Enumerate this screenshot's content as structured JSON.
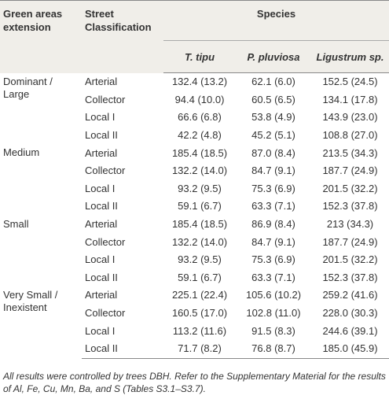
{
  "table": {
    "header": {
      "group": "Green areas extension",
      "street": "Street Classification",
      "species": "Species",
      "columns": [
        "T. tipu",
        "P. pluviosa",
        "Ligustrum sp."
      ]
    },
    "groups": [
      {
        "name": "Dominant / Large",
        "rows": [
          [
            "Arterial",
            "132.4 (13.2)",
            "62.1 (6.0)",
            "152.5 (24.5)"
          ],
          [
            "Collector",
            "94.4 (10.0)",
            "60.5 (6.5)",
            "134.1 (17.8)"
          ],
          [
            "Local I",
            "66.6 (6.8)",
            "53.8 (4.9)",
            "143.9 (23.0)"
          ],
          [
            "Local II",
            "42.2 (4.8)",
            "45.2 (5.1)",
            "108.8 (27.0)"
          ]
        ]
      },
      {
        "name": "Medium",
        "rows": [
          [
            "Arterial",
            "185.4 (18.5)",
            "87.0 (8.4)",
            "213.5 (34.3)"
          ],
          [
            "Collector",
            "132.2 (14.0)",
            "84.7 (9.1)",
            "187.7 (24.9)"
          ],
          [
            "Local I",
            "93.2 (9.5)",
            "75.3 (6.9)",
            "201.5 (32.2)"
          ],
          [
            "Local II",
            "59.1 (6.7)",
            "63.3 (7.1)",
            "152.3 (37.8)"
          ]
        ]
      },
      {
        "name": "Small",
        "rows": [
          [
            "Arterial",
            "185.4 (18.5)",
            "86.9 (8.4)",
            "213 (34.3)"
          ],
          [
            "Collector",
            "132.2 (14.0)",
            "84.7 (9.1)",
            "187.7 (24.9)"
          ],
          [
            "Local I",
            "93.2 (9.5)",
            "75.3 (6.9)",
            "201.5 (32.2)"
          ],
          [
            "Local II",
            "59.1 (6.7)",
            "63.3 (7.1)",
            "152.3 (37.8)"
          ]
        ]
      },
      {
        "name": "Very Small / Inexistent",
        "rows": [
          [
            "Arterial",
            "225.1 (22.4)",
            "105.6 (10.2)",
            "259.2 (41.6)"
          ],
          [
            "Collector",
            "160.5 (17.0)",
            "102.8 (11.0)",
            "228.0 (30.3)"
          ],
          [
            "Local I",
            "113.2 (11.6)",
            "91.5 (8.3)",
            "244.6 (39.1)"
          ],
          [
            "Local II",
            "71.7 (8.2)",
            "76.8 (8.7)",
            "185.0 (45.9)"
          ]
        ]
      }
    ],
    "footnote": "All results were controlled by trees DBH. Refer to the Supplementary Material for the results of Al, Fe, Cu, Mn, Ba, and S (Tables S3.1–S3.7)."
  }
}
